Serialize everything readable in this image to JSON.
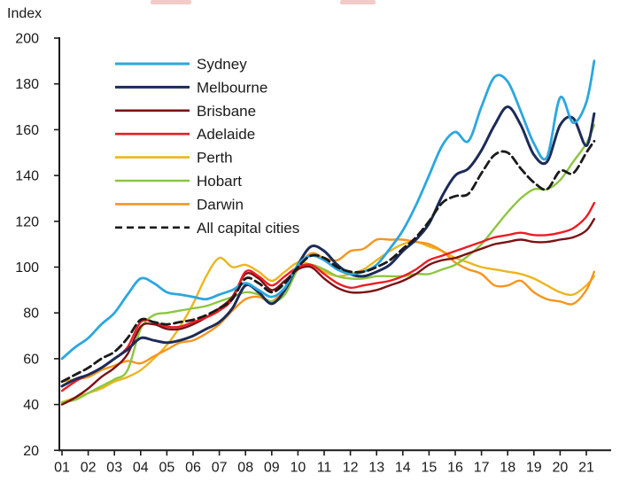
{
  "chart": {
    "axis_title": "Index",
    "y_ticks": [
      200,
      180,
      160,
      140,
      120,
      100,
      80,
      60,
      40,
      20
    ],
    "x_ticks": [
      "01",
      "02",
      "03",
      "04",
      "05",
      "06",
      "07",
      "08",
      "09",
      "10",
      "11",
      "12",
      "13",
      "14",
      "15",
      "16",
      "17",
      "18",
      "19",
      "20",
      "21"
    ]
  },
  "chart_data": {
    "type": "line",
    "title": "",
    "ylabel": "Index",
    "xlabel": "",
    "ylim": [
      20,
      200
    ],
    "xlim": [
      2000.9,
      2021.9
    ],
    "grid": false,
    "legend_position": "top-left-inside",
    "x": [
      2001,
      2001.5,
      2002,
      2002.5,
      2003,
      2003.5,
      2004,
      2004.5,
      2005,
      2005.5,
      2006,
      2006.5,
      2007,
      2007.5,
      2008,
      2008.5,
      2009,
      2009.5,
      2010,
      2010.5,
      2011,
      2011.5,
      2012,
      2012.5,
      2013,
      2013.5,
      2014,
      2014.5,
      2015,
      2015.5,
      2016,
      2016.5,
      2017,
      2017.5,
      2018,
      2018.5,
      2019,
      2019.5,
      2020,
      2020.5,
      2021,
      2021.3
    ],
    "series": [
      {
        "name": "Sydney",
        "color": "#2BA7DF",
        "dashed": false,
        "width": 2.8,
        "values": [
          60,
          65,
          69,
          75,
          80,
          88,
          95,
          93,
          89,
          88,
          87,
          86,
          88,
          90,
          93,
          90,
          87,
          91,
          101,
          105,
          103,
          99,
          97,
          98,
          101,
          108,
          116,
          127,
          140,
          153,
          159,
          155,
          170,
          183,
          181,
          168,
          154,
          148,
          174,
          163,
          172,
          190
        ]
      },
      {
        "name": "Melbourne",
        "color": "#1C2B58",
        "dashed": false,
        "width": 3,
        "values": [
          48,
          51,
          53,
          56,
          60,
          64,
          69,
          68,
          67,
          68,
          70,
          73,
          76,
          82,
          92,
          89,
          84,
          90,
          101,
          109,
          107,
          101,
          97,
          96,
          98,
          101,
          107,
          112,
          119,
          131,
          140,
          143,
          151,
          162,
          170,
          162,
          149,
          146,
          162,
          165,
          153,
          167
        ]
      },
      {
        "name": "Brisbane",
        "color": "#7B1113",
        "dashed": false,
        "width": 2.4,
        "values": [
          40,
          43,
          47,
          52,
          56,
          62,
          74,
          75,
          73,
          73,
          75,
          78,
          82,
          87,
          97,
          95,
          90,
          94,
          99,
          100,
          95,
          91,
          89,
          89,
          90,
          92,
          94,
          97,
          101,
          103,
          104,
          106,
          108,
          110,
          111,
          112,
          111,
          111,
          112,
          113,
          116,
          121
        ]
      },
      {
        "name": "Adelaide",
        "color": "#EC1C24",
        "dashed": false,
        "width": 2.4,
        "values": [
          46,
          50,
          53,
          56,
          60,
          65,
          76,
          76,
          74,
          74,
          76,
          78,
          81,
          86,
          98,
          96,
          92,
          96,
          100,
          101,
          97,
          93,
          91,
          92,
          93,
          94,
          96,
          99,
          103,
          105,
          107,
          109,
          111,
          113,
          114,
          115,
          114,
          114,
          115,
          117,
          122,
          128
        ]
      },
      {
        "name": "Perth",
        "color": "#EDB51E",
        "dashed": false,
        "width": 2.4,
        "values": [
          41,
          43,
          45,
          47,
          50,
          52,
          55,
          60,
          66,
          74,
          84,
          96,
          104,
          100,
          101,
          98,
          94,
          98,
          102,
          101,
          98,
          96,
          97,
          99,
          103,
          107,
          110,
          111,
          109,
          107,
          104,
          102,
          100,
          99,
          98,
          97,
          95,
          92,
          89,
          88,
          92,
          96
        ]
      },
      {
        "name": "Hobart",
        "color": "#8CC63F",
        "dashed": false,
        "width": 2.4,
        "values": [
          41,
          42,
          45,
          48,
          51,
          55,
          73,
          79,
          80,
          81,
          82,
          83,
          85,
          87,
          89,
          88,
          85,
          88,
          99,
          101,
          99,
          96,
          95,
          95,
          96,
          96,
          96,
          97,
          97,
          99,
          101,
          105,
          110,
          117,
          124,
          130,
          134,
          134,
          138,
          146,
          154,
          162
        ]
      },
      {
        "name": "Darwin",
        "color": "#F7941D",
        "dashed": false,
        "width": 2.4,
        "values": [
          50,
          51,
          52,
          55,
          57,
          59,
          58,
          61,
          64,
          67,
          68,
          71,
          75,
          81,
          86,
          87,
          85,
          91,
          100,
          106,
          104,
          103,
          107,
          108,
          112,
          112,
          112,
          111,
          110,
          107,
          102,
          99,
          97,
          92,
          92,
          94,
          89,
          86,
          85,
          84,
          90,
          98
        ]
      },
      {
        "name": "All capital cities",
        "color": "#1A1A1A",
        "dashed": true,
        "width": 2.8,
        "values": [
          50,
          53,
          56,
          60,
          63,
          69,
          77,
          76,
          75,
          76,
          77,
          79,
          82,
          86,
          95,
          93,
          89,
          93,
          100,
          105,
          104,
          100,
          98,
          98,
          100,
          103,
          108,
          113,
          120,
          128,
          131,
          132,
          141,
          149,
          150,
          143,
          137,
          134,
          142,
          141,
          150,
          155
        ]
      }
    ]
  }
}
